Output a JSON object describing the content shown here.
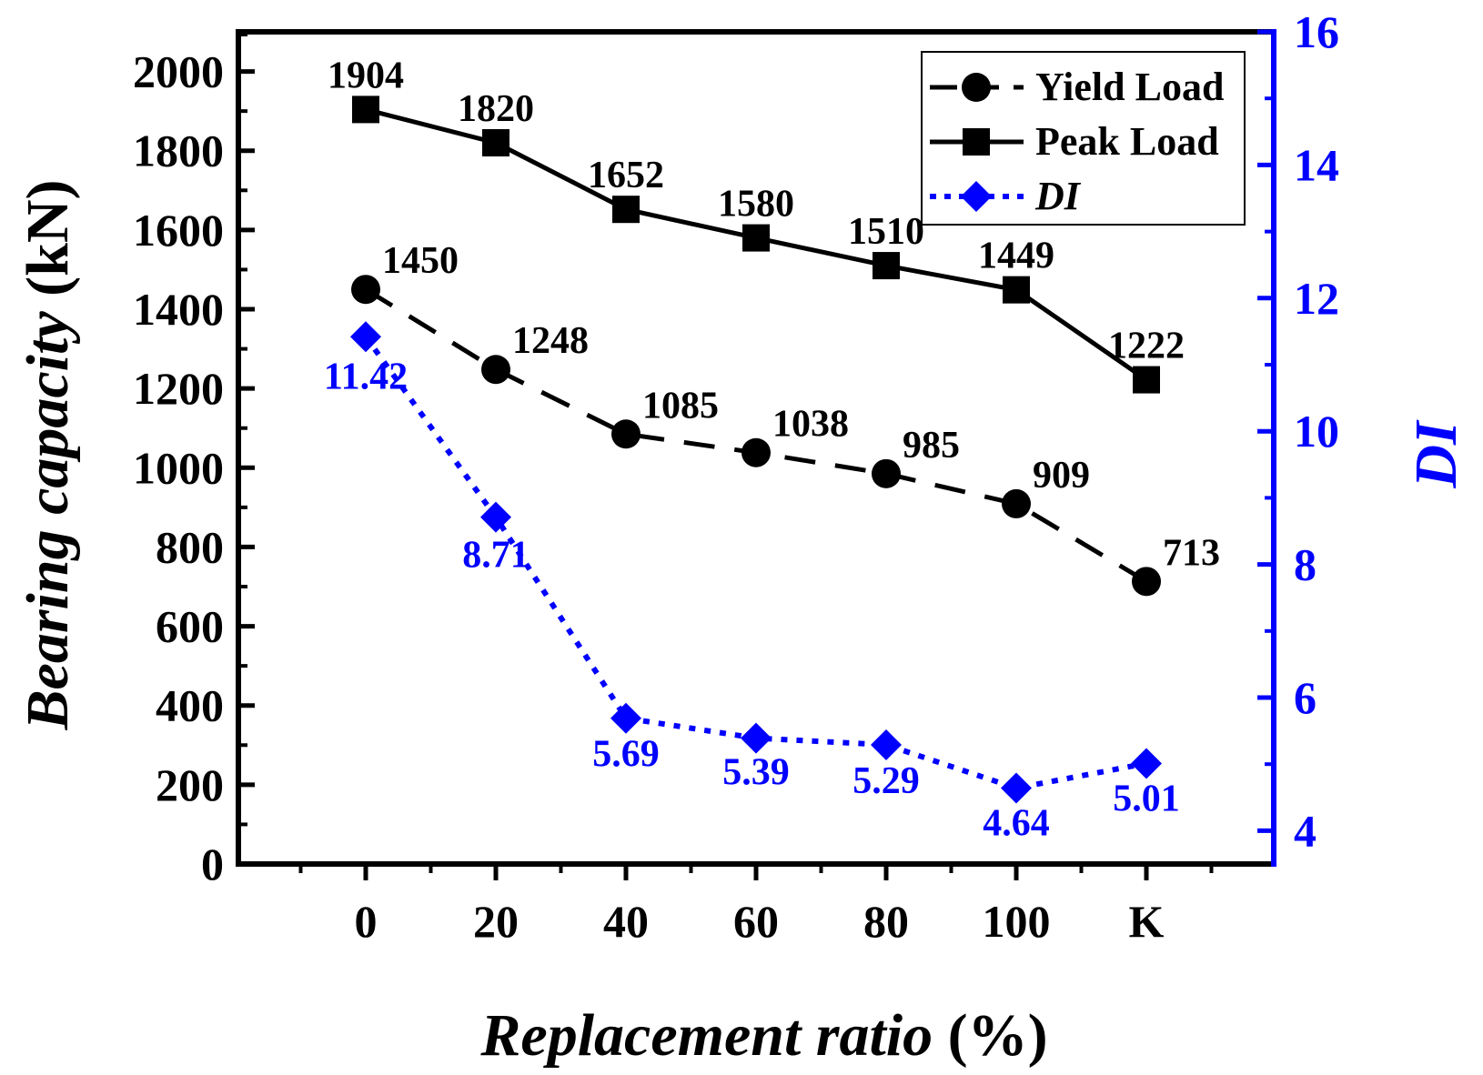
{
  "chart_data": {
    "type": "line",
    "categories": [
      "0",
      "20",
      "40",
      "60",
      "80",
      "100",
      "K"
    ],
    "xlabel": "Replacement ratio (%)",
    "xlabel_main": "Replacement ratio",
    "xlabel_unit": " (%)",
    "ylabel": "Bearing capacity (kN)",
    "ylabel_main": "Bearing capacity",
    "ylabel_unit": " (kN)",
    "y2label": "DI",
    "ylim": [
      0,
      2100
    ],
    "y2lim": [
      3.5,
      16
    ],
    "yticks": [
      0,
      200,
      400,
      600,
      800,
      1000,
      1200,
      1400,
      1600,
      1800,
      2000
    ],
    "y2ticks": [
      4,
      6,
      8,
      10,
      12,
      14,
      16
    ],
    "legend_position": "top-right",
    "series": [
      {
        "name": "Yield Load",
        "axis": "left",
        "marker": "circle",
        "line": "dashed",
        "color": "#000000",
        "values": [
          1450,
          1248,
          1085,
          1038,
          985,
          909,
          713
        ],
        "labels": [
          "1450",
          "1248",
          "1085",
          "1038",
          "985",
          "909",
          "713"
        ]
      },
      {
        "name": "Peak Load",
        "axis": "left",
        "marker": "square",
        "line": "solid",
        "color": "#000000",
        "values": [
          1904,
          1820,
          1652,
          1580,
          1510,
          1449,
          1222
        ],
        "labels": [
          "1904",
          "1820",
          "1652",
          "1580",
          "1510",
          "1449",
          "1222"
        ]
      },
      {
        "name": "DI",
        "axis": "right",
        "marker": "diamond",
        "line": "dotted",
        "color": "#0000ff",
        "values": [
          11.42,
          8.71,
          5.69,
          5.39,
          5.29,
          4.64,
          5.01
        ],
        "labels": [
          "11.42",
          "8.71",
          "5.69",
          "5.39",
          "5.29",
          "4.64",
          "5.01"
        ]
      }
    ]
  }
}
